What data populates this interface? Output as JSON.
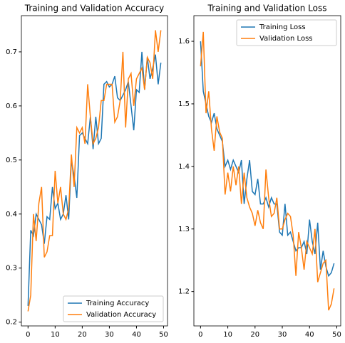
{
  "chart_data": [
    {
      "type": "line",
      "title": "Training and Validation Accuracy",
      "x": [
        0,
        1,
        2,
        3,
        4,
        5,
        6,
        7,
        8,
        9,
        10,
        11,
        12,
        13,
        14,
        15,
        16,
        17,
        18,
        19,
        20,
        21,
        22,
        23,
        24,
        25,
        26,
        27,
        28,
        29,
        30,
        31,
        32,
        33,
        34,
        35,
        36,
        37,
        38,
        39,
        40,
        41,
        42,
        43,
        44,
        45,
        46,
        47,
        48,
        49
      ],
      "series": [
        {
          "name": "Training Accuracy",
          "color": "#1f77b4",
          "values": [
            0.23,
            0.37,
            0.36,
            0.4,
            0.39,
            0.38,
            0.345,
            0.395,
            0.39,
            0.45,
            0.41,
            0.42,
            0.39,
            0.4,
            0.435,
            0.39,
            0.5,
            0.47,
            0.43,
            0.545,
            0.55,
            0.54,
            0.53,
            0.58,
            0.52,
            0.58,
            0.53,
            0.54,
            0.64,
            0.645,
            0.635,
            0.64,
            0.655,
            0.615,
            0.61,
            0.62,
            0.63,
            0.645,
            0.6,
            0.555,
            0.63,
            0.625,
            0.7,
            0.63,
            0.69,
            0.65,
            0.67,
            0.695,
            0.64,
            0.68
          ]
        },
        {
          "name": "Validation Accuracy",
          "color": "#ff7f0e",
          "values": [
            0.22,
            0.25,
            0.4,
            0.35,
            0.42,
            0.45,
            0.32,
            0.33,
            0.36,
            0.36,
            0.48,
            0.42,
            0.45,
            0.4,
            0.39,
            0.41,
            0.51,
            0.45,
            0.56,
            0.55,
            0.56,
            0.53,
            0.64,
            0.58,
            0.53,
            0.54,
            0.56,
            0.61,
            0.61,
            0.64,
            0.64,
            0.64,
            0.57,
            0.58,
            0.61,
            0.7,
            0.56,
            0.65,
            0.66,
            0.6,
            0.65,
            0.66,
            0.67,
            0.63,
            0.69,
            0.68,
            0.65,
            0.74,
            0.7,
            0.74
          ]
        }
      ],
      "xlim": [
        -2.45,
        51.45
      ],
      "xticks": [
        0,
        10,
        20,
        30,
        40,
        50
      ],
      "ylim": [
        0.193,
        0.767
      ],
      "yticks": [
        0.2,
        0.3,
        0.4,
        0.5,
        0.6,
        0.7
      ],
      "legend": "lower right"
    },
    {
      "type": "line",
      "title": "Training and Validation Loss",
      "x": [
        0,
        1,
        2,
        3,
        4,
        5,
        6,
        7,
        8,
        9,
        10,
        11,
        12,
        13,
        14,
        15,
        16,
        17,
        18,
        19,
        20,
        21,
        22,
        23,
        24,
        25,
        26,
        27,
        28,
        29,
        30,
        31,
        32,
        33,
        34,
        35,
        36,
        37,
        38,
        39,
        40,
        41,
        42,
        43,
        44,
        45,
        46,
        47,
        48,
        49
      ],
      "series": [
        {
          "name": "Training Loss",
          "color": "#1f77b4",
          "values": [
            1.6,
            1.52,
            1.5,
            1.48,
            1.47,
            1.485,
            1.46,
            1.45,
            1.44,
            1.4,
            1.41,
            1.395,
            1.41,
            1.4,
            1.39,
            1.41,
            1.34,
            1.38,
            1.41,
            1.36,
            1.355,
            1.38,
            1.34,
            1.34,
            1.35,
            1.335,
            1.35,
            1.34,
            1.34,
            1.295,
            1.29,
            1.34,
            1.29,
            1.295,
            1.28,
            1.265,
            1.27,
            1.27,
            1.28,
            1.26,
            1.315,
            1.28,
            1.26,
            1.31,
            1.235,
            1.265,
            1.24,
            1.225,
            1.23,
            1.245
          ]
        },
        {
          "name": "Validation Loss",
          "color": "#ff7f0e",
          "values": [
            1.56,
            1.615,
            1.485,
            1.52,
            1.46,
            1.425,
            1.48,
            1.455,
            1.445,
            1.355,
            1.39,
            1.36,
            1.4,
            1.37,
            1.4,
            1.34,
            1.39,
            1.35,
            1.335,
            1.325,
            1.305,
            1.33,
            1.31,
            1.3,
            1.395,
            1.35,
            1.32,
            1.325,
            1.35,
            1.3,
            1.3,
            1.315,
            1.325,
            1.32,
            1.29,
            1.225,
            1.295,
            1.27,
            1.235,
            1.28,
            1.27,
            1.26,
            1.3,
            1.215,
            1.23,
            1.245,
            1.25,
            1.17,
            1.18,
            1.205
          ]
        }
      ],
      "xlim": [
        -2.45,
        51.45
      ],
      "xticks": [
        0,
        10,
        20,
        30,
        40,
        50
      ],
      "ylim": [
        1.145,
        1.641
      ],
      "yticks": [
        1.2,
        1.3,
        1.4,
        1.5,
        1.6
      ],
      "legend": "upper right"
    }
  ]
}
